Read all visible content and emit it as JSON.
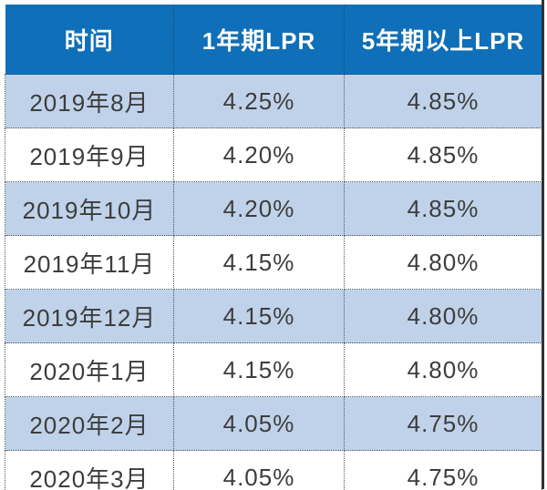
{
  "colors": {
    "header_bg": "#0f6fb8",
    "header_text": "#ffffff",
    "row_alt_bg": "#bfd2e9",
    "row_bg": "#ffffff",
    "body_text": "#3d3d3d",
    "dotted_border": "#4d555e",
    "right_edge_line": "#2f3336"
  },
  "chart_data": {
    "type": "table",
    "columns": [
      "时间",
      "1年期LPR",
      "5年期以上LPR"
    ],
    "rows": [
      [
        "2019年8月",
        "4.25%",
        "4.85%"
      ],
      [
        "2019年9月",
        "4.20%",
        "4.85%"
      ],
      [
        "2019年10月",
        "4.20%",
        "4.85%"
      ],
      [
        "2019年11月",
        "4.15%",
        "4.80%"
      ],
      [
        "2019年12月",
        "4.15%",
        "4.80%"
      ],
      [
        "2020年1月",
        "4.15%",
        "4.80%"
      ],
      [
        "2020年2月",
        "4.05%",
        "4.75%"
      ],
      [
        "2020年3月",
        "4.05%",
        "4.75%"
      ]
    ],
    "layout": {
      "header_position": "top",
      "alternating_rows": true,
      "first_data_row_shaded": true
    }
  }
}
